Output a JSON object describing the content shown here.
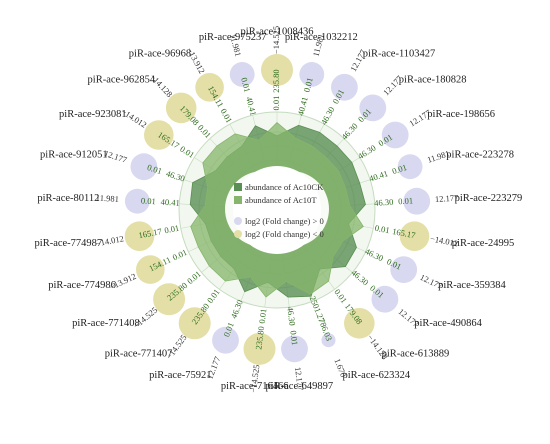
{
  "colors": {
    "up": "#d8d8f0",
    "down": "#e4dfa6",
    "ck_area": "#5a8f54",
    "t_area": "#86b56b",
    "abundance_text": "#2e6b1d",
    "ring": "#c6dcc0"
  },
  "legend": {
    "ck": "abundance of Ac10CK",
    "t": "abundance of Ac10T",
    "up": "log2 (Fold change) > 0",
    "down": "log2 (Fold change) < 0"
  },
  "chart_data": {
    "type": "radar",
    "title": "",
    "series": [
      {
        "name": "abundance of Ac10CK"
      },
      {
        "name": "abundance of Ac10T"
      }
    ],
    "axis_ticks": [
      "235.80",
      "40.41",
      "0.01"
    ],
    "items": [
      {
        "name": "piR-ace-1008436",
        "fc": "−14.525",
        "ck": "0.01",
        "t": "235.80",
        "dir": "down",
        "size": 1.0,
        "v_ck": 0.55,
        "v_t": 0.85
      },
      {
        "name": "piR-ace-1032212",
        "fc": "11.981",
        "ck": "40.41",
        "t": "0.01",
        "dir": "up",
        "size": 0.7,
        "v_ck": 0.85,
        "v_t": 0.55
      },
      {
        "name": "piR-ace-1103427",
        "fc": "12.177",
        "ck": "46.30",
        "t": "0.01",
        "dir": "up",
        "size": 0.78,
        "v_ck": 0.88,
        "v_t": 0.52
      },
      {
        "name": "piR-ace-180828",
        "fc": "12.177",
        "ck": "46.30",
        "t": "0.01",
        "dir": "up",
        "size": 0.78,
        "v_ck": 0.86,
        "v_t": 0.5
      },
      {
        "name": "piR-ace-198656",
        "fc": "12.177",
        "ck": "46.30",
        "t": "0.01",
        "dir": "up",
        "size": 0.78,
        "v_ck": 0.88,
        "v_t": 0.52
      },
      {
        "name": "piR-ace-223278",
        "fc": "11.981",
        "ck": "40.41",
        "t": "0.01",
        "dir": "up",
        "size": 0.7,
        "v_ck": 0.84,
        "v_t": 0.5
      },
      {
        "name": "piR-ace-223279",
        "fc": "12.177",
        "ck": "46.30",
        "t": "0.01",
        "dir": "up",
        "size": 0.78,
        "v_ck": 0.88,
        "v_t": 0.52
      },
      {
        "name": "piR-ace-24995",
        "fc": "−14.012",
        "ck": "0.01",
        "t": "165.17",
        "dir": "down",
        "size": 0.9,
        "v_ck": 0.52,
        "v_t": 0.86
      },
      {
        "name": "piR-ace-359384",
        "fc": "12.177",
        "ck": "46.30",
        "t": "0.01",
        "dir": "up",
        "size": 0.78,
        "v_ck": 0.86,
        "v_t": 0.52
      },
      {
        "name": "piR-ace-490864",
        "fc": "12.177",
        "ck": "46.30",
        "t": "0.01",
        "dir": "up",
        "size": 0.78,
        "v_ck": 0.88,
        "v_t": 0.52
      },
      {
        "name": "piR-ace-613889",
        "fc": "−14.128",
        "ck": "0.01",
        "t": "179.08",
        "dir": "down",
        "size": 0.94,
        "v_ck": 0.52,
        "v_t": 0.86
      },
      {
        "name": "piR-ace-623324",
        "fc": "1.670",
        "ck": "2501.27",
        "t": "786.03",
        "dir": "up",
        "size": 0.25,
        "v_ck": 0.97,
        "v_t": 0.92
      },
      {
        "name": "piR-ace-649897",
        "fc": "12.177",
        "ck": "46.30",
        "t": "0.01",
        "dir": "up",
        "size": 0.78,
        "v_ck": 0.86,
        "v_t": 0.5
      },
      {
        "name": "piR-ace-716466",
        "fc": "−14.525",
        "ck": "0.01",
        "t": "235.80",
        "dir": "down",
        "size": 1.0,
        "v_ck": 0.52,
        "v_t": 0.86
      },
      {
        "name": "piR-ace-75921",
        "fc": "12.177",
        "ck": "46.30",
        "t": "0.01",
        "dir": "up",
        "size": 0.78,
        "v_ck": 0.86,
        "v_t": 0.5
      },
      {
        "name": "piR-ace-771407",
        "fc": "−14.525",
        "ck": "0.01",
        "t": "235.80",
        "dir": "down",
        "size": 1.0,
        "v_ck": 0.52,
        "v_t": 0.86
      },
      {
        "name": "piR-ace-771408",
        "fc": "−14.525",
        "ck": "0.01",
        "t": "235.80",
        "dir": "down",
        "size": 1.0,
        "v_ck": 0.52,
        "v_t": 0.86
      },
      {
        "name": "piR-ace-774986",
        "fc": "−13.912",
        "ck": "0.01",
        "t": "154.11",
        "dir": "down",
        "size": 0.86,
        "v_ck": 0.52,
        "v_t": 0.84
      },
      {
        "name": "piR-ace-774987",
        "fc": "−14.012",
        "ck": "0.01",
        "t": "165.17",
        "dir": "down",
        "size": 0.9,
        "v_ck": 0.52,
        "v_t": 0.86
      },
      {
        "name": "piR-ace-80112",
        "fc": "11.981",
        "ck": "40.41",
        "t": "0.01",
        "dir": "up",
        "size": 0.7,
        "v_ck": 0.84,
        "v_t": 0.5
      },
      {
        "name": "piR-ace-912051",
        "fc": "12.177",
        "ck": "46.30",
        "t": "0.01",
        "dir": "up",
        "size": 0.78,
        "v_ck": 0.88,
        "v_t": 0.52
      },
      {
        "name": "piR-ace-923081",
        "fc": "−14.012",
        "ck": "0.01",
        "t": "165.17",
        "dir": "down",
        "size": 0.9,
        "v_ck": 0.52,
        "v_t": 0.86
      },
      {
        "name": "piR-ace-962854",
        "fc": "−14.128",
        "ck": "0.01",
        "t": "179.08",
        "dir": "down",
        "size": 0.94,
        "v_ck": 0.52,
        "v_t": 0.86
      },
      {
        "name": "piR-ace-96968",
        "fc": "−13.912",
        "ck": "0.01",
        "t": "154.11",
        "dir": "down",
        "size": 0.86,
        "v_ck": 0.52,
        "v_t": 0.84
      },
      {
        "name": "piR-ace-975237",
        "fc": "11.981",
        "ck": "40.41",
        "t": "0.01",
        "dir": "up",
        "size": 0.7,
        "v_ck": 0.84,
        "v_t": 0.5
      }
    ]
  }
}
